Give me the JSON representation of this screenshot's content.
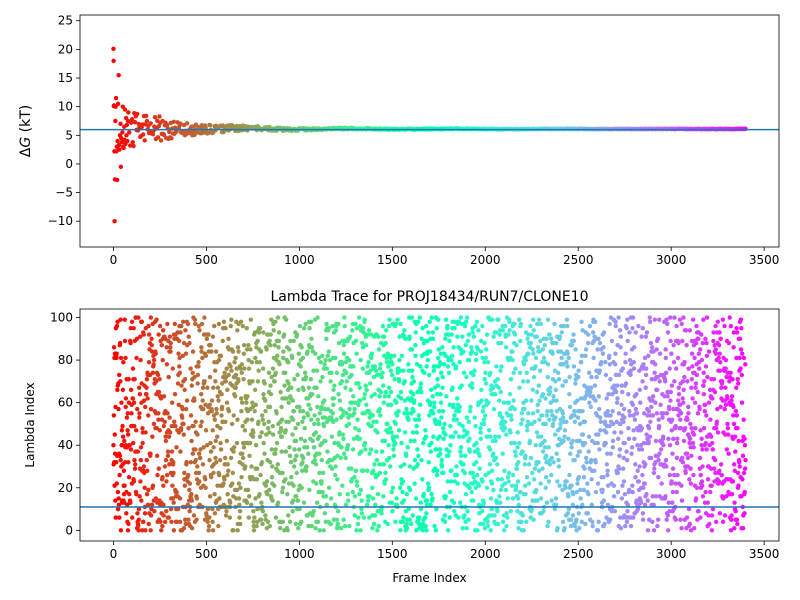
{
  "chart_data": [
    {
      "type": "scatter",
      "title": "",
      "xlabel": "",
      "ylabel_prefix": "Δ",
      "ylabel_symbol": "G",
      "ylabel_suffix": " (kT)",
      "xlim": [
        -180,
        3580
      ],
      "ylim": [
        -14.5,
        26
      ],
      "xticks": [
        0,
        500,
        1000,
        1500,
        2000,
        2500,
        3000,
        3500
      ],
      "yticks": [
        -10,
        -5,
        0,
        5,
        10,
        15,
        20,
        25
      ],
      "hline": 6.0,
      "hline_color": "#1f77b4",
      "colormap": "rainbow",
      "n_frames": 3400,
      "x_range": [
        0,
        3400
      ],
      "converged_value": 6.1,
      "early_points": [
        {
          "x": 0,
          "y": 20.1
        },
        {
          "x": 1,
          "y": 18.0
        },
        {
          "x": 2,
          "y": 10.1
        },
        {
          "x": 3,
          "y": 10.2
        },
        {
          "x": 5,
          "y": 2.2
        },
        {
          "x": 6,
          "y": -10.0
        },
        {
          "x": 8,
          "y": -2.7
        },
        {
          "x": 10,
          "y": 7.5
        },
        {
          "x": 12,
          "y": 10.0
        },
        {
          "x": 14,
          "y": 11.5
        },
        {
          "x": 16,
          "y": 2.2
        },
        {
          "x": 18,
          "y": 3.0
        },
        {
          "x": 20,
          "y": -2.8
        },
        {
          "x": 22,
          "y": 4.0
        },
        {
          "x": 25,
          "y": 10.5
        },
        {
          "x": 28,
          "y": 15.5
        },
        {
          "x": 30,
          "y": 3.3
        },
        {
          "x": 32,
          "y": 2.5
        },
        {
          "x": 35,
          "y": 5.0
        },
        {
          "x": 38,
          "y": 7.0
        },
        {
          "x": 40,
          "y": -0.5
        },
        {
          "x": 42,
          "y": 4.5
        },
        {
          "x": 45,
          "y": 3.8
        },
        {
          "x": 48,
          "y": 5.5
        },
        {
          "x": 50,
          "y": 10.0
        },
        {
          "x": 52,
          "y": 3.0
        },
        {
          "x": 55,
          "y": 2.8
        },
        {
          "x": 58,
          "y": 6.5
        },
        {
          "x": 60,
          "y": 4.2
        },
        {
          "x": 62,
          "y": 9.5
        },
        {
          "x": 65,
          "y": 3.5
        },
        {
          "x": 68,
          "y": 8.0
        },
        {
          "x": 70,
          "y": 5.0
        },
        {
          "x": 72,
          "y": 6.8
        },
        {
          "x": 75,
          "y": 4.0
        },
        {
          "x": 78,
          "y": 7.5
        },
        {
          "x": 80,
          "y": 9.0
        },
        {
          "x": 85,
          "y": 5.5
        },
        {
          "x": 90,
          "y": 3.2
        },
        {
          "x": 95,
          "y": 7.2
        }
      ]
    },
    {
      "type": "scatter",
      "title": "Lambda Trace for PROJ18434/RUN7/CLONE10",
      "xlabel": "Frame Index",
      "ylabel": "Lambda Index",
      "xlim": [
        -180,
        3580
      ],
      "ylim": [
        -5,
        104
      ],
      "xticks": [
        0,
        500,
        1000,
        1500,
        2000,
        2500,
        3000,
        3500
      ],
      "yticks": [
        0,
        20,
        40,
        60,
        80,
        100
      ],
      "hline": 11,
      "hline_color": "#1f77b4",
      "colormap": "rainbow",
      "n_frames": 3400,
      "lambda_range": [
        0,
        100
      ]
    }
  ]
}
